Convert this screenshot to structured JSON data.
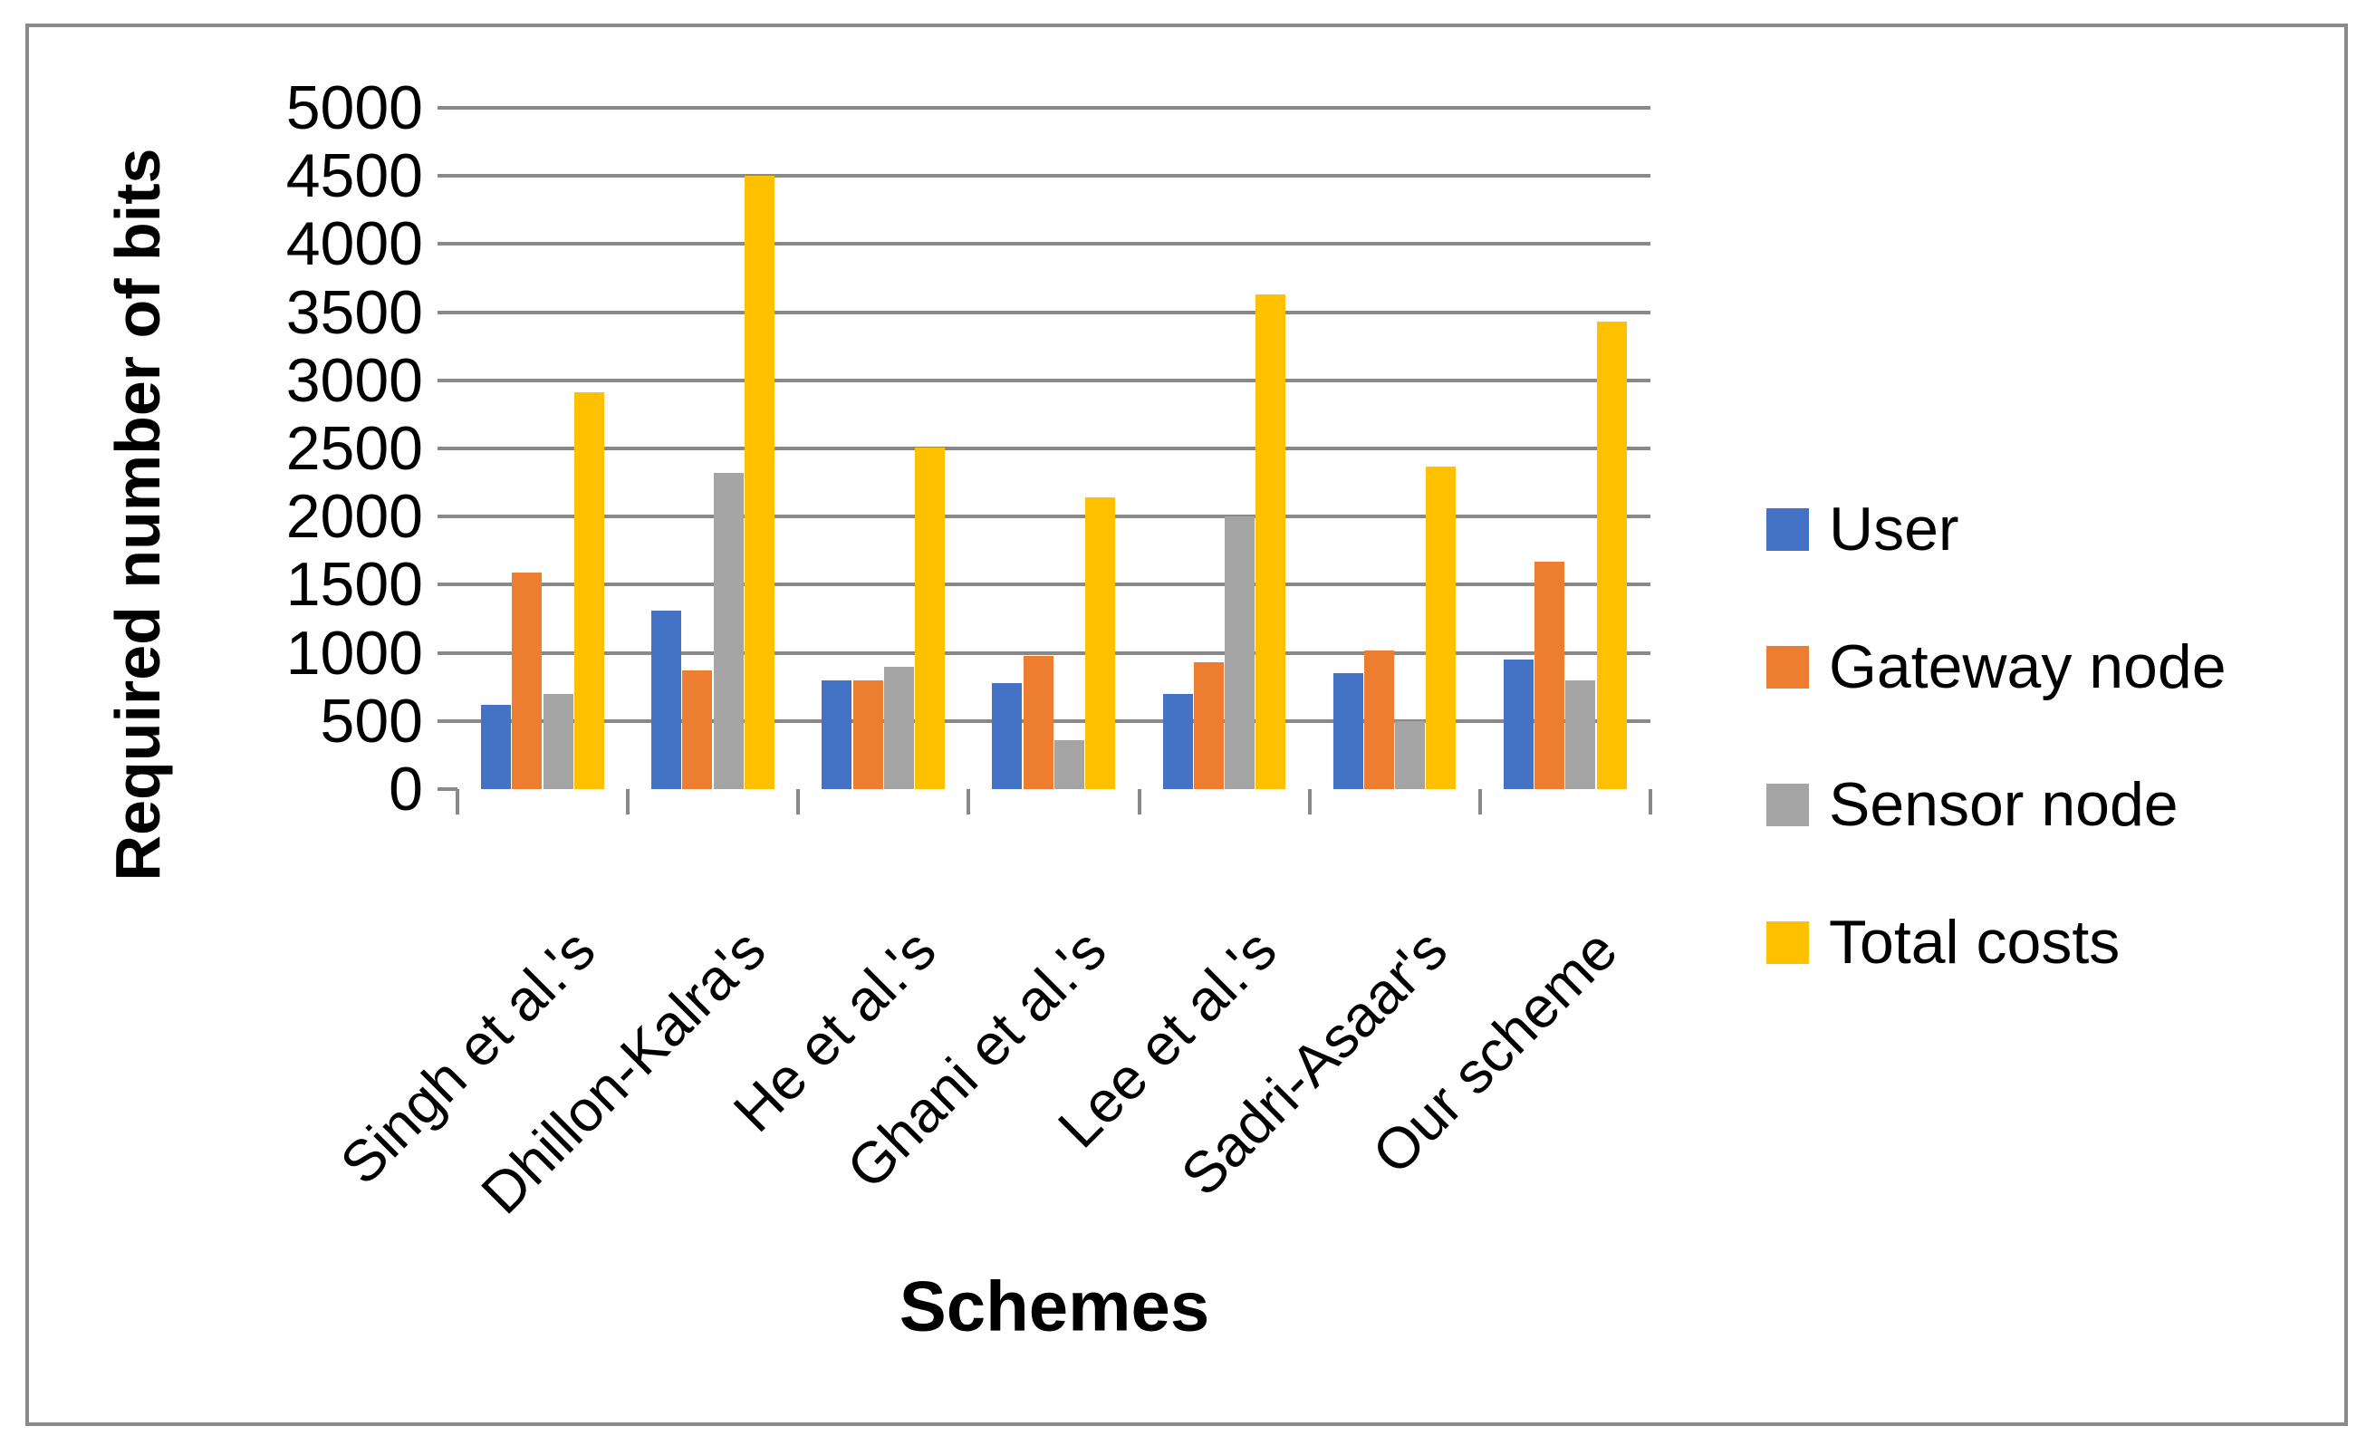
{
  "figure": {
    "background_color": "#FFFFFF",
    "border_color": "#8A8A8A"
  },
  "chart_data": {
    "type": "bar",
    "title": "",
    "xlabel": "Schemes",
    "ylabel": "Required number of bits",
    "categories": [
      "Singh et al.'s",
      "Dhillon-Kalra's",
      "He et al.'s",
      "Ghani et al.'s",
      "Lee et al.'s",
      "Sadri-Asaar's",
      "Our scheme"
    ],
    "series": [
      {
        "name": "User",
        "color": "#4472C4",
        "values": [
          620,
          1310,
          800,
          780,
          700,
          850,
          950
        ]
      },
      {
        "name": "Gateway node",
        "color": "#ED7D31",
        "values": [
          1590,
          870,
          800,
          980,
          930,
          1020,
          1670
        ]
      },
      {
        "name": "Sensor node",
        "color": "#A5A5A5",
        "values": [
          700,
          2320,
          900,
          360,
          2000,
          500,
          800
        ]
      },
      {
        "name": "Total costs",
        "color": "#FFC000",
        "values": [
          2910,
          4500,
          2510,
          2140,
          3630,
          2370,
          3430
        ]
      }
    ],
    "ylim": [
      0,
      5000
    ],
    "yticks": [
      0,
      500,
      1000,
      1500,
      2000,
      2500,
      3000,
      3500,
      4000,
      4500,
      5000
    ],
    "grid": true,
    "gridline_color": "#898989",
    "axis_color": "#898989",
    "legend_position": "right"
  }
}
